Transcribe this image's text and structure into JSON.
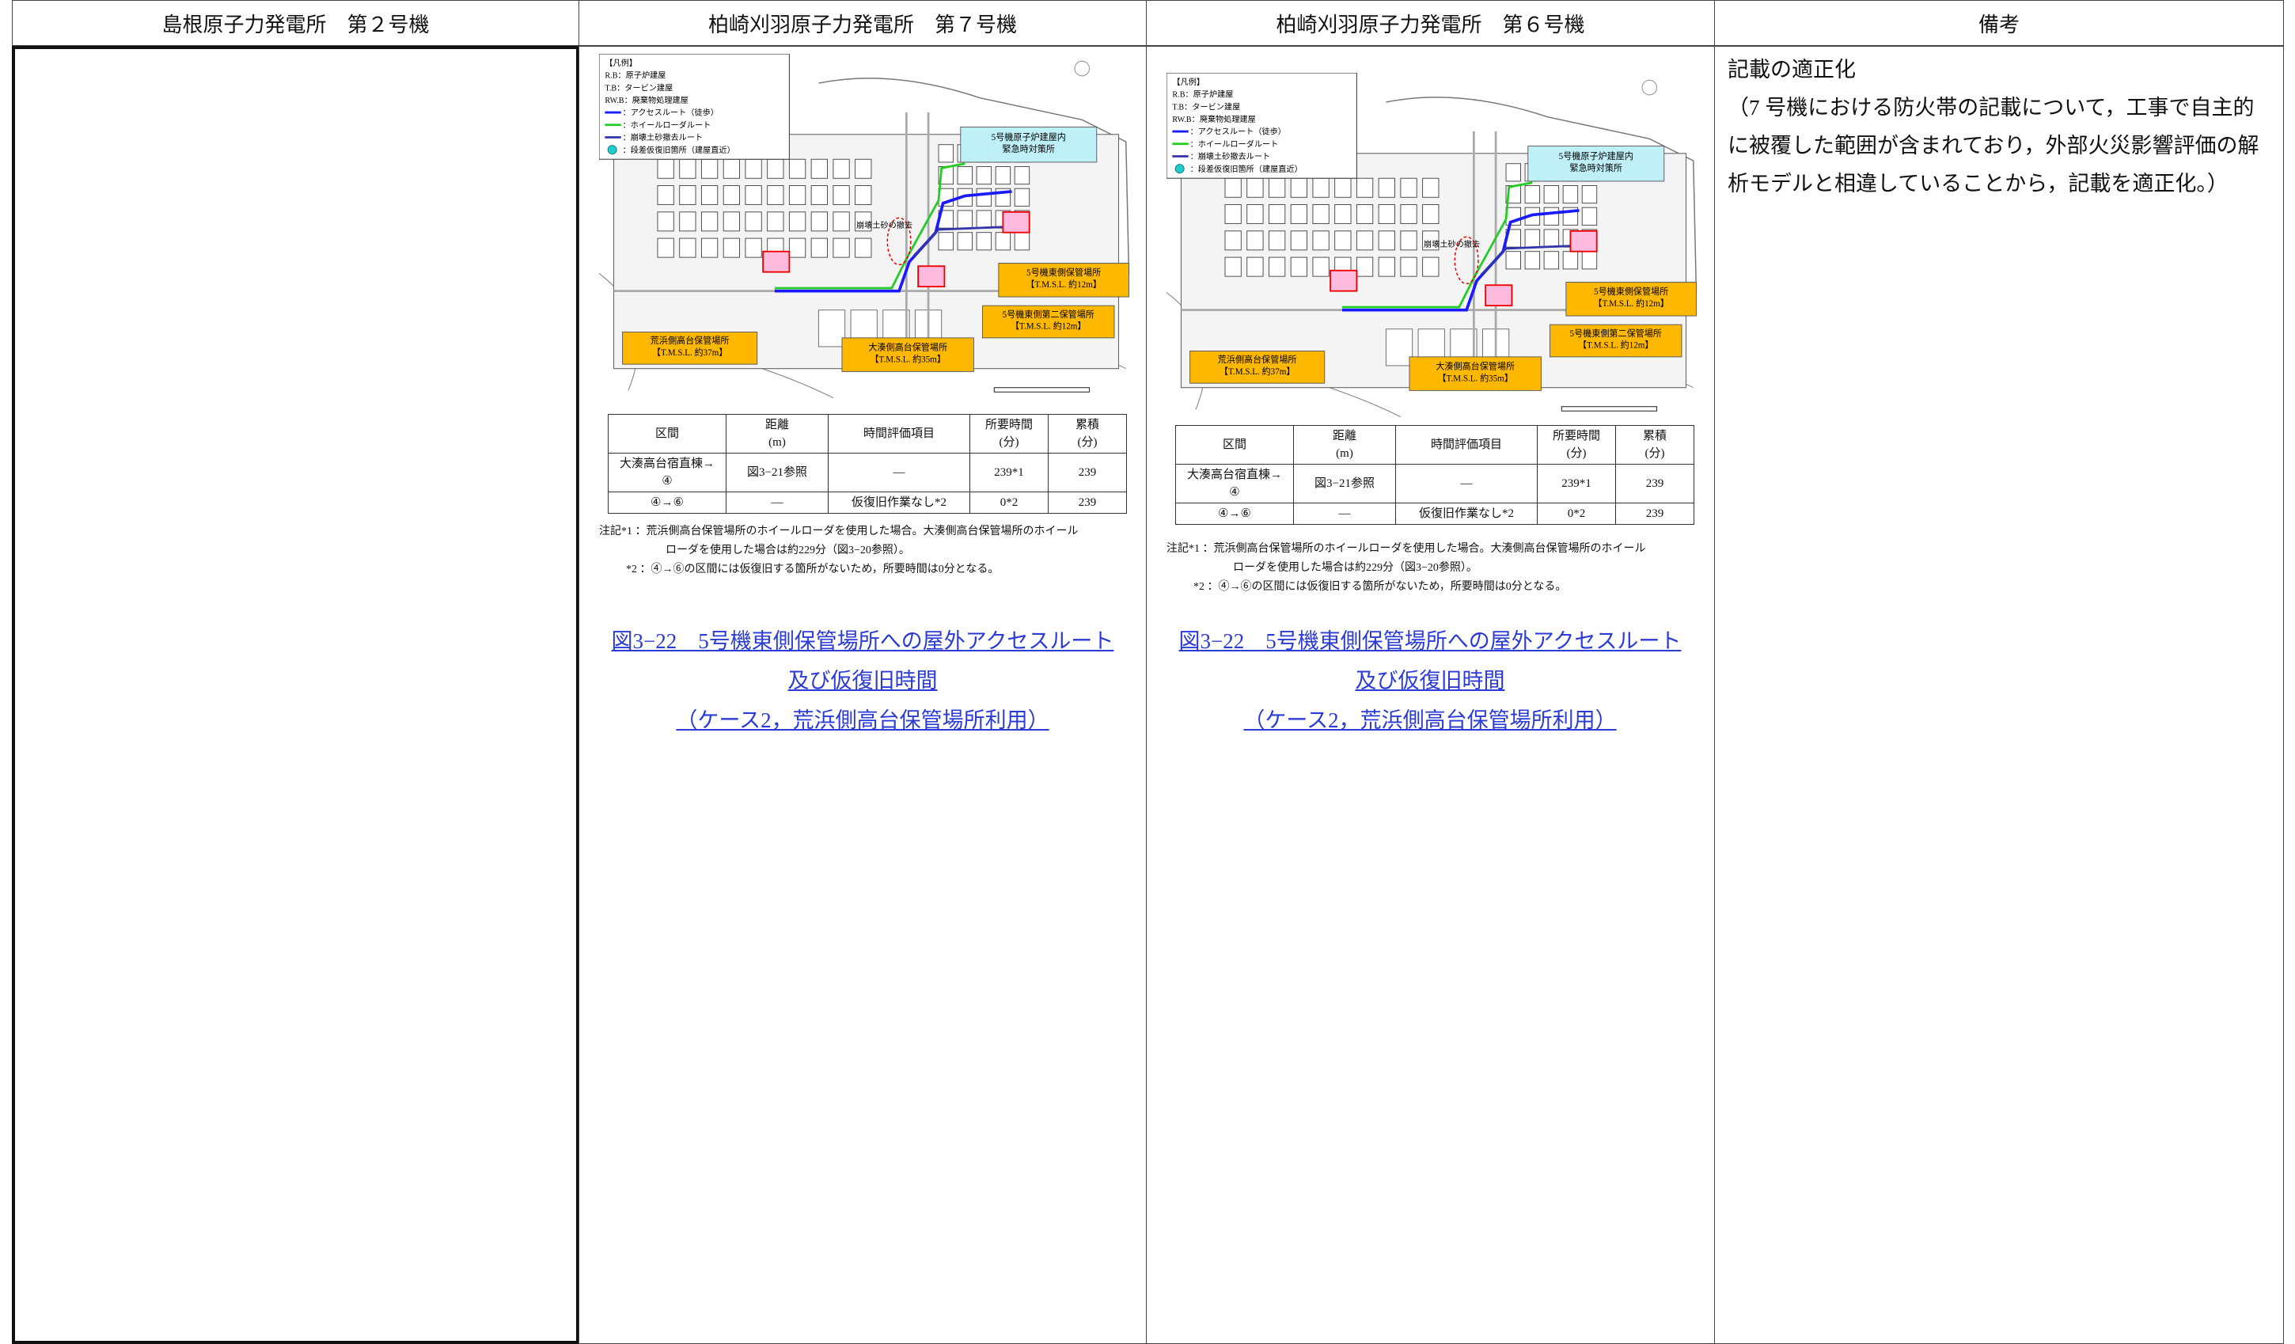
{
  "header": [
    "島根原子力発電所　第２号機",
    "柏崎刈羽原子力発電所　第７号機",
    "柏崎刈羽原子力発電所　第６号機",
    "備考"
  ],
  "figures": [
    {
      "legend": [
        "【凡例】",
        "R.B：原子炉建屋",
        "T.B：タービン建屋",
        "RW.B：廃棄物処理建屋",
        "：アクセスルート（徒歩）",
        "：ホイールローダルート",
        "：崩壊土砂撤去ルート",
        "：段差仮復旧箇所（建屋直近）"
      ],
      "map_labels": {
        "emergency": [
          "5号機原子炉建屋内",
          "緊急時対策所"
        ],
        "east": [
          "5号機東側保管場所",
          "【T.M.S.L. 約12m】"
        ],
        "east2": [
          "5号機東側第二保管場所",
          "【T.M.S.L. 約12m】"
        ],
        "ominato": [
          "大湊側高台保管場所",
          "【T.M.S.L. 約35m】"
        ],
        "arahama": [
          "荒浜側高台保管場所",
          "【T.M.S.L. 約37m】"
        ],
        "removal": "崩壊土砂の撤去"
      },
      "table": {
        "headers": [
          [
            "区間"
          ],
          [
            "距離",
            "(m)"
          ],
          [
            "時間評価項目"
          ],
          [
            "所要時間",
            "(分)"
          ],
          [
            "累積",
            "(分)"
          ]
        ],
        "rows": [
          [
            [
              "大湊高台宿直棟→",
              "④"
            ],
            [
              "図3−21参照"
            ],
            [
              "—"
            ],
            [
              "239*1"
            ],
            [
              "239"
            ]
          ],
          [
            [
              "④→⑥"
            ],
            [
              "—"
            ],
            [
              "仮復旧作業なし*2"
            ],
            [
              "0*2"
            ],
            [
              "239"
            ]
          ]
        ]
      },
      "notes": [
        "注記*1 ：荒浜側高台保管場所のホイールローダを使用した場合。大湊側高台保管場所のホイール",
        "ローダを使用した場合は約229分（図3−20参照）。",
        "*2 ：④→⑥の区間には仮復旧する箇所がないため，所要時間は0分となる。"
      ],
      "caption": [
        "図3−22　5号機東側保管場所への屋外アクセスルート",
        "及び仮復旧時間",
        "（ケース2，荒浜側高台保管場所利用）"
      ]
    },
    {
      "legend": [
        "【凡例】",
        "R.B：原子炉建屋",
        "T.B：タービン建屋",
        "RW.B：廃棄物処理建屋",
        "：アクセスルート（徒歩）",
        "：ホイールローダルート",
        "：崩壊土砂撤去ルート",
        "：段差仮復旧箇所（建屋直近）"
      ],
      "map_labels": {
        "emergency": [
          "5号機原子炉建屋内",
          "緊急時対策所"
        ],
        "east": [
          "5号機東側保管場所",
          "【T.M.S.L. 約12m】"
        ],
        "east2": [
          "5号機東側第二保管場所",
          "【T.M.S.L. 約12m】"
        ],
        "ominato": [
          "大湊側高台保管場所",
          "【T.M.S.L. 約35m】"
        ],
        "arahama": [
          "荒浜側高台保管場所",
          "【T.M.S.L. 約37m】"
        ],
        "removal": "崩壊土砂の撤去"
      },
      "table": {
        "headers": [
          [
            "区間"
          ],
          [
            "距離",
            "(m)"
          ],
          [
            "時間評価項目"
          ],
          [
            "所要時間",
            "(分)"
          ],
          [
            "累積",
            "(分)"
          ]
        ],
        "rows": [
          [
            [
              "大湊高台宿直棟→",
              "④"
            ],
            [
              "図3−21参照"
            ],
            [
              "—"
            ],
            [
              "239*1"
            ],
            [
              "239"
            ]
          ],
          [
            [
              "④→⑥"
            ],
            [
              "—"
            ],
            [
              "仮復旧作業なし*2"
            ],
            [
              "0*2"
            ],
            [
              "239"
            ]
          ]
        ]
      },
      "notes": [
        "注記*1 ：荒浜側高台保管場所のホイールローダを使用した場合。大湊側高台保管場所のホイール",
        "ローダを使用した場合は約229分（図3−20参照）。",
        "*2 ：④→⑥の区間には仮復旧する箇所がないため，所要時間は0分となる。"
      ],
      "caption": [
        "図3−22　5号機東側保管場所への屋外アクセスルート",
        "及び仮復旧時間",
        "（ケース2，荒浜側高台保管場所利用）"
      ]
    }
  ],
  "remarks": {
    "title": "記載の適正化",
    "body": [
      "（7 号機における防火帯の記載について，工事で自主的",
      "に被覆した範囲が含まれており，外部火災影響評価の解",
      "析モデルと相違していることから，記載を適正化。）"
    ]
  }
}
